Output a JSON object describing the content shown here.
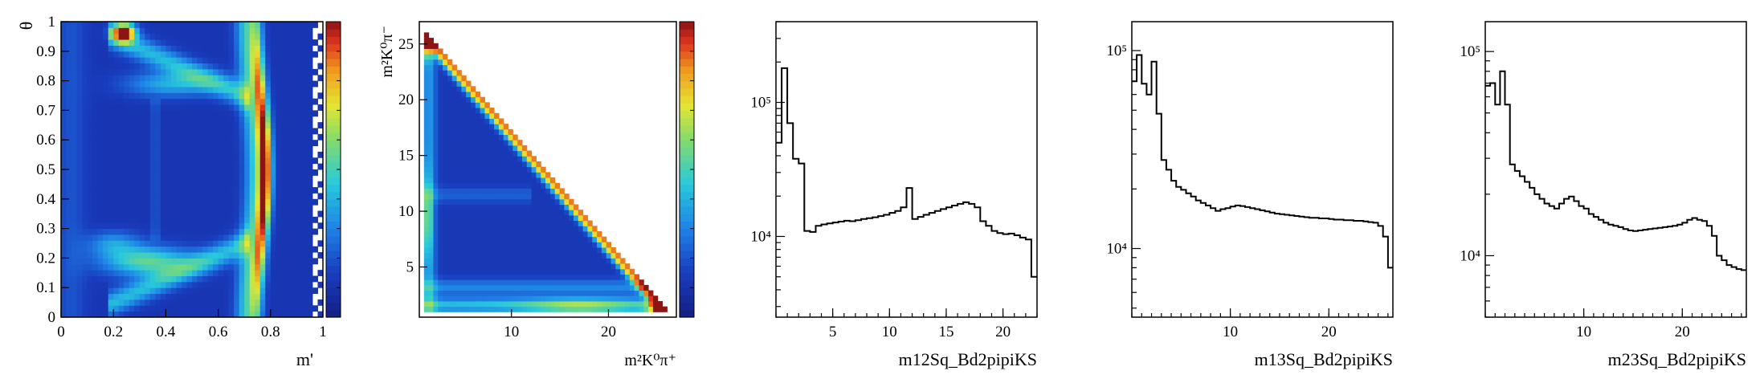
{
  "chart_data": [
    {
      "type": "heatmap",
      "xlabel": "m'",
      "ylabel": "θ",
      "xlim": [
        0,
        1
      ],
      "ylim": [
        0,
        1
      ],
      "xticks": [
        "0",
        "0.2",
        "0.4",
        "0.6",
        "0.8",
        "1"
      ],
      "yticks": [
        "0",
        "0.1",
        "0.2",
        "0.3",
        "0.4",
        "0.5",
        "0.6",
        "0.7",
        "0.8",
        "0.9",
        "1"
      ],
      "colorbar": true,
      "nbins": [
        50,
        50
      ],
      "hotspots": [
        {
          "x": 0.22,
          "y": 0.96,
          "w": 0.05,
          "h": 0.03,
          "v": 1.0
        },
        {
          "x": 0.75,
          "y": 0.5,
          "w": 0.03,
          "h": 0.35,
          "v": 0.75
        },
        {
          "x": 0.3,
          "y": 0.15,
          "w": 0.12,
          "h": 0.05,
          "v": 0.45
        }
      ]
    },
    {
      "type": "heatmap",
      "xlabel": "m²K⁰π⁺",
      "ylabel": "m²K⁰π⁻",
      "xlim": [
        0.5,
        27
      ],
      "ylim": [
        0.5,
        27
      ],
      "xticks": [
        "10",
        "20"
      ],
      "yticks": [
        "5",
        "10",
        "15",
        "20",
        "25"
      ],
      "colorbar": true,
      "nbins": [
        55,
        55
      ],
      "boundary": "dalitz-triangle"
    },
    {
      "type": "line",
      "step": true,
      "log_y": true,
      "xlabel": "m12Sq_Bd2pipiKS",
      "xlim": [
        0,
        23
      ],
      "ylim": [
        2500,
        400000
      ],
      "xticks": [
        "5",
        "10",
        "15",
        "20"
      ],
      "yticks": [
        "10⁴",
        "10⁵"
      ],
      "x": [
        0,
        0.5,
        1,
        1.5,
        2,
        2.5,
        3,
        3.5,
        4,
        4.5,
        5,
        5.5,
        6,
        6.5,
        7,
        7.5,
        8,
        8.5,
        9,
        9.5,
        10,
        10.5,
        11,
        11.5,
        12,
        12.5,
        13,
        13.5,
        14,
        14.5,
        15,
        15.5,
        16,
        16.5,
        17,
        17.5,
        18,
        18.5,
        19,
        19.5,
        20,
        20.5,
        21,
        21.5,
        22,
        22.5
      ],
      "values": [
        50000,
        180000,
        70000,
        38000,
        35000,
        11000,
        10800,
        12000,
        12300,
        12500,
        12700,
        12900,
        13100,
        13000,
        13200,
        13500,
        13700,
        13900,
        14200,
        14500,
        15000,
        15500,
        16500,
        23000,
        13500,
        14000,
        14500,
        15000,
        15500,
        16000,
        16500,
        17000,
        17500,
        18000,
        17500,
        16500,
        13000,
        12000,
        11000,
        10600,
        10400,
        10500,
        10200,
        9800,
        9500,
        5000
      ]
    },
    {
      "type": "line",
      "step": true,
      "log_y": true,
      "xlabel": "m13Sq_Bd2pipiKS",
      "xlim": [
        0,
        26.5
      ],
      "ylim": [
        4500,
        140000
      ],
      "xticks": [
        "10",
        "20"
      ],
      "yticks": [
        "10⁴",
        "10⁵"
      ],
      "x": [
        0,
        0.5,
        1,
        1.5,
        2,
        2.5,
        3,
        3.5,
        4,
        4.5,
        5,
        5.5,
        6,
        6.5,
        7,
        7.5,
        8,
        8.5,
        9,
        9.5,
        10,
        10.5,
        11,
        11.5,
        12,
        12.5,
        13,
        13.5,
        14,
        14.5,
        15,
        15.5,
        16,
        16.5,
        17,
        17.5,
        18,
        18.5,
        19,
        19.5,
        20,
        20.5,
        21,
        21.5,
        22,
        22.5,
        23,
        23.5,
        24,
        24.5,
        25,
        25.5,
        26
      ],
      "values": [
        70000,
        95000,
        68000,
        60000,
        88000,
        48000,
        28000,
        25000,
        22000,
        20500,
        19800,
        19000,
        18300,
        17500,
        17000,
        16500,
        16000,
        15500,
        15800,
        16000,
        16300,
        16500,
        16400,
        16200,
        16000,
        15800,
        15600,
        15400,
        15200,
        15000,
        14900,
        14800,
        14700,
        14600,
        14500,
        14400,
        14300,
        14300,
        14200,
        14200,
        14100,
        14000,
        14000,
        13900,
        13900,
        13800,
        13800,
        13700,
        13600,
        13500,
        13000,
        11500,
        8000
      ]
    },
    {
      "type": "line",
      "step": true,
      "log_y": true,
      "xlabel": "m23Sq_Bd2pipiKS",
      "xlim": [
        0,
        26.5
      ],
      "ylim": [
        5000,
        140000
      ],
      "xticks": [
        "10",
        "20"
      ],
      "yticks": [
        "10⁴",
        "10⁵"
      ],
      "x": [
        0,
        0.5,
        1,
        1.5,
        2,
        2.5,
        3,
        3.5,
        4,
        4.5,
        5,
        5.5,
        6,
        6.5,
        7,
        7.5,
        8,
        8.5,
        9,
        9.5,
        10,
        10.5,
        11,
        11.5,
        12,
        12.5,
        13,
        13.5,
        14,
        14.5,
        15,
        15.5,
        16,
        16.5,
        17,
        17.5,
        18,
        18.5,
        19,
        19.5,
        20,
        20.5,
        21,
        21.5,
        22,
        22.5,
        23,
        23.5,
        24,
        24.5,
        25,
        25.5,
        26
      ],
      "values": [
        68000,
        70000,
        55000,
        80000,
        55000,
        28000,
        26000,
        24500,
        23000,
        21500,
        20000,
        19000,
        18000,
        17500,
        17000,
        18000,
        19000,
        19500,
        18500,
        17500,
        17000,
        16000,
        15500,
        15000,
        14500,
        14200,
        14000,
        13800,
        13500,
        13300,
        13200,
        13300,
        13400,
        13500,
        13600,
        13700,
        13800,
        13900,
        14000,
        14200,
        14500,
        15000,
        15300,
        15000,
        14800,
        14000,
        12500,
        10000,
        9500,
        9000,
        8800,
        8600,
        8500
      ]
    }
  ]
}
